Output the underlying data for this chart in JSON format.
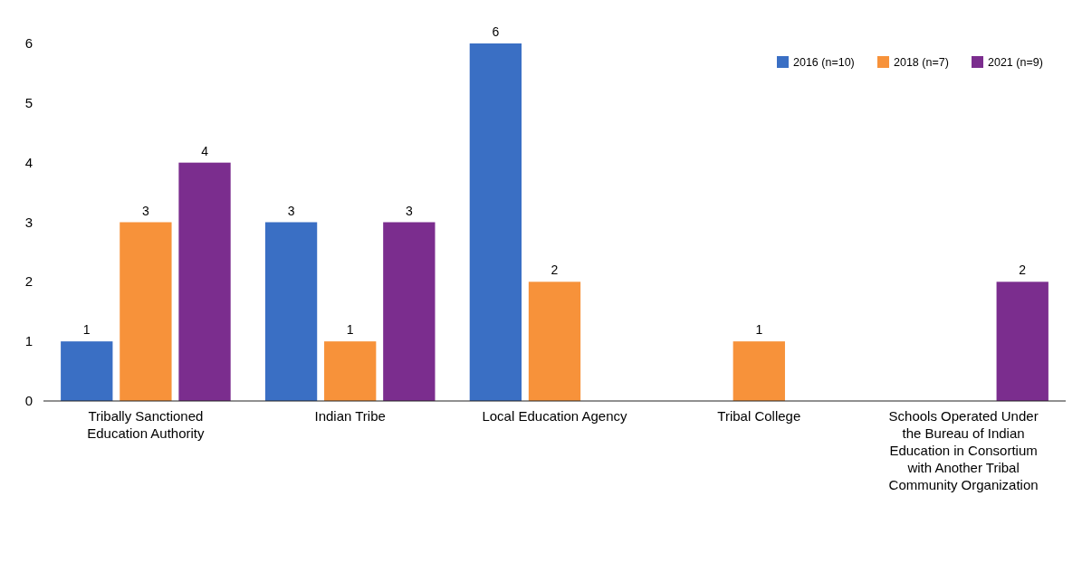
{
  "chart_data": {
    "type": "bar",
    "categories": [
      "Tribally Sanctioned Education Authority",
      "Indian Tribe",
      "Local Education Agency",
      "Tribal College",
      "Schools Operated Under the Bureau of Indian Education in Consortium with Another Tribal Community Organization"
    ],
    "series": [
      {
        "name": "2016 (n=10)",
        "color": "#3a6fc4",
        "values": [
          1,
          3,
          6,
          null,
          null
        ]
      },
      {
        "name": "2018 (n=7)",
        "color": "#f7923a",
        "values": [
          3,
          1,
          2,
          1,
          null
        ]
      },
      {
        "name": "2021 (n=9)",
        "color": "#7b2d8e",
        "values": [
          4,
          3,
          null,
          null,
          2
        ]
      }
    ],
    "ylim": [
      0,
      6
    ],
    "yticks": [
      0,
      1,
      2,
      3,
      4,
      5,
      6
    ],
    "grid": false,
    "legend": "top right",
    "data_labels": true
  }
}
